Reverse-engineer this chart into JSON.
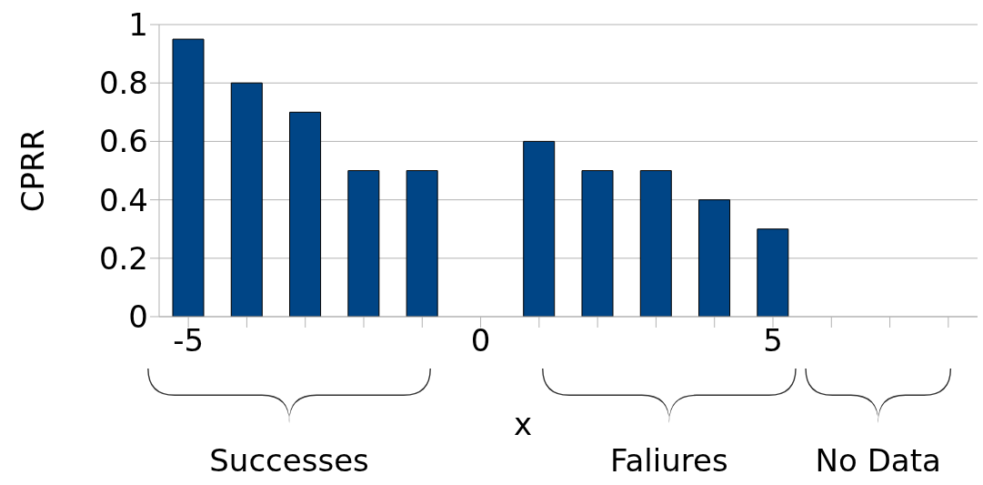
{
  "chart_data": {
    "type": "bar",
    "xlabel": "x",
    "ylabel": "CPRR",
    "x": [
      -5,
      -4,
      -3,
      -2,
      -1,
      1,
      2,
      3,
      4,
      5
    ],
    "values": [
      0.95,
      0.8,
      0.7,
      0.5,
      0.5,
      0.6,
      0.5,
      0.5,
      0.4,
      0.3
    ],
    "color": "#004586",
    "xlim": [
      -5.5,
      8.5
    ],
    "xticks": [
      -5,
      {
        "value": -4,
        "label": null
      },
      {
        "value": -3,
        "label": null
      },
      {
        "value": -2,
        "label": null
      },
      {
        "value": -1,
        "label": null
      },
      0,
      {
        "value": 1,
        "label": null
      },
      {
        "value": 2,
        "label": null
      },
      {
        "value": 3,
        "label": null
      },
      {
        "value": 4,
        "label": null
      },
      5,
      {
        "value": 6,
        "label": null
      },
      {
        "value": 7,
        "label": null
      },
      {
        "value": 8,
        "label": null
      }
    ],
    "ylim": [
      0,
      1
    ],
    "yticks": [
      0,
      0.2,
      0.4,
      0.6,
      0.8,
      1
    ],
    "grid": "y",
    "annotations": [
      "Successes",
      "Faliures",
      "No Data"
    ]
  }
}
